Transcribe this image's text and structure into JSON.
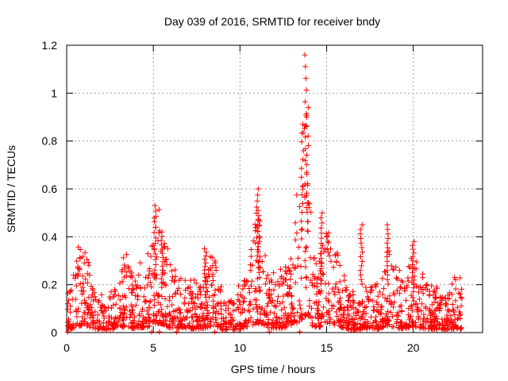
{
  "chart_data": {
    "type": "scatter",
    "title": "Day 039 of 2016, SRMTID for receiver bndy",
    "xlabel": "GPS time / hours",
    "ylabel": "SRMTID / TECUs",
    "xlim": [
      0,
      24
    ],
    "ylim": [
      0,
      1.2
    ],
    "xticks": [
      0,
      5,
      10,
      15,
      20
    ],
    "xtick_labels": [
      "0",
      "5",
      "10",
      "15",
      "20"
    ],
    "yticks": [
      0,
      0.2,
      0.4,
      0.6,
      0.8,
      1,
      1.2
    ],
    "ytick_labels": [
      "0",
      "0.2",
      "0.4",
      "0.6",
      "0.8",
      "1",
      "1.2"
    ],
    "grid": true,
    "marker": "+",
    "series_color": "#ff0000",
    "envelope_hours": [
      0.0,
      0.5,
      0.8,
      1.2,
      1.6,
      2.0,
      2.5,
      3.0,
      3.4,
      3.8,
      4.2,
      4.6,
      5.0,
      5.2,
      5.5,
      6.0,
      6.5,
      7.0,
      7.5,
      8.0,
      8.5,
      9.0,
      9.5,
      10.0,
      10.5,
      11.0,
      11.3,
      11.6,
      12.0,
      12.5,
      13.0,
      13.5,
      13.8,
      14.2,
      14.6,
      15.0,
      15.5,
      16.0,
      16.5,
      17.0,
      17.5,
      18.0,
      18.5,
      19.0,
      19.5,
      20.0,
      20.5,
      21.0,
      21.5,
      22.0,
      22.5,
      22.8
    ],
    "envelope_values": [
      0.11,
      0.16,
      0.24,
      0.22,
      0.12,
      0.09,
      0.11,
      0.14,
      0.22,
      0.14,
      0.17,
      0.18,
      0.27,
      0.33,
      0.3,
      0.16,
      0.16,
      0.15,
      0.12,
      0.15,
      0.25,
      0.09,
      0.09,
      0.12,
      0.18,
      0.34,
      0.3,
      0.17,
      0.16,
      0.16,
      0.22,
      0.42,
      0.58,
      0.21,
      0.19,
      0.3,
      0.26,
      0.14,
      0.1,
      0.08,
      0.16,
      0.12,
      0.24,
      0.16,
      0.14,
      0.2,
      0.15,
      0.13,
      0.11,
      0.09,
      0.15,
      0.12
    ],
    "peaks": [
      {
        "x": 5.1,
        "y": 0.53
      },
      {
        "x": 5.5,
        "y": 0.42
      },
      {
        "x": 8.0,
        "y": 0.35
      },
      {
        "x": 11.0,
        "y": 0.6
      },
      {
        "x": 11.1,
        "y": 0.51
      },
      {
        "x": 13.6,
        "y": 0.87
      },
      {
        "x": 13.8,
        "y": 1.16
      },
      {
        "x": 13.9,
        "y": 0.94
      },
      {
        "x": 14.7,
        "y": 0.5
      },
      {
        "x": 17.0,
        "y": 0.45
      },
      {
        "x": 18.5,
        "y": 0.45
      },
      {
        "x": 20.0,
        "y": 0.38
      }
    ]
  }
}
